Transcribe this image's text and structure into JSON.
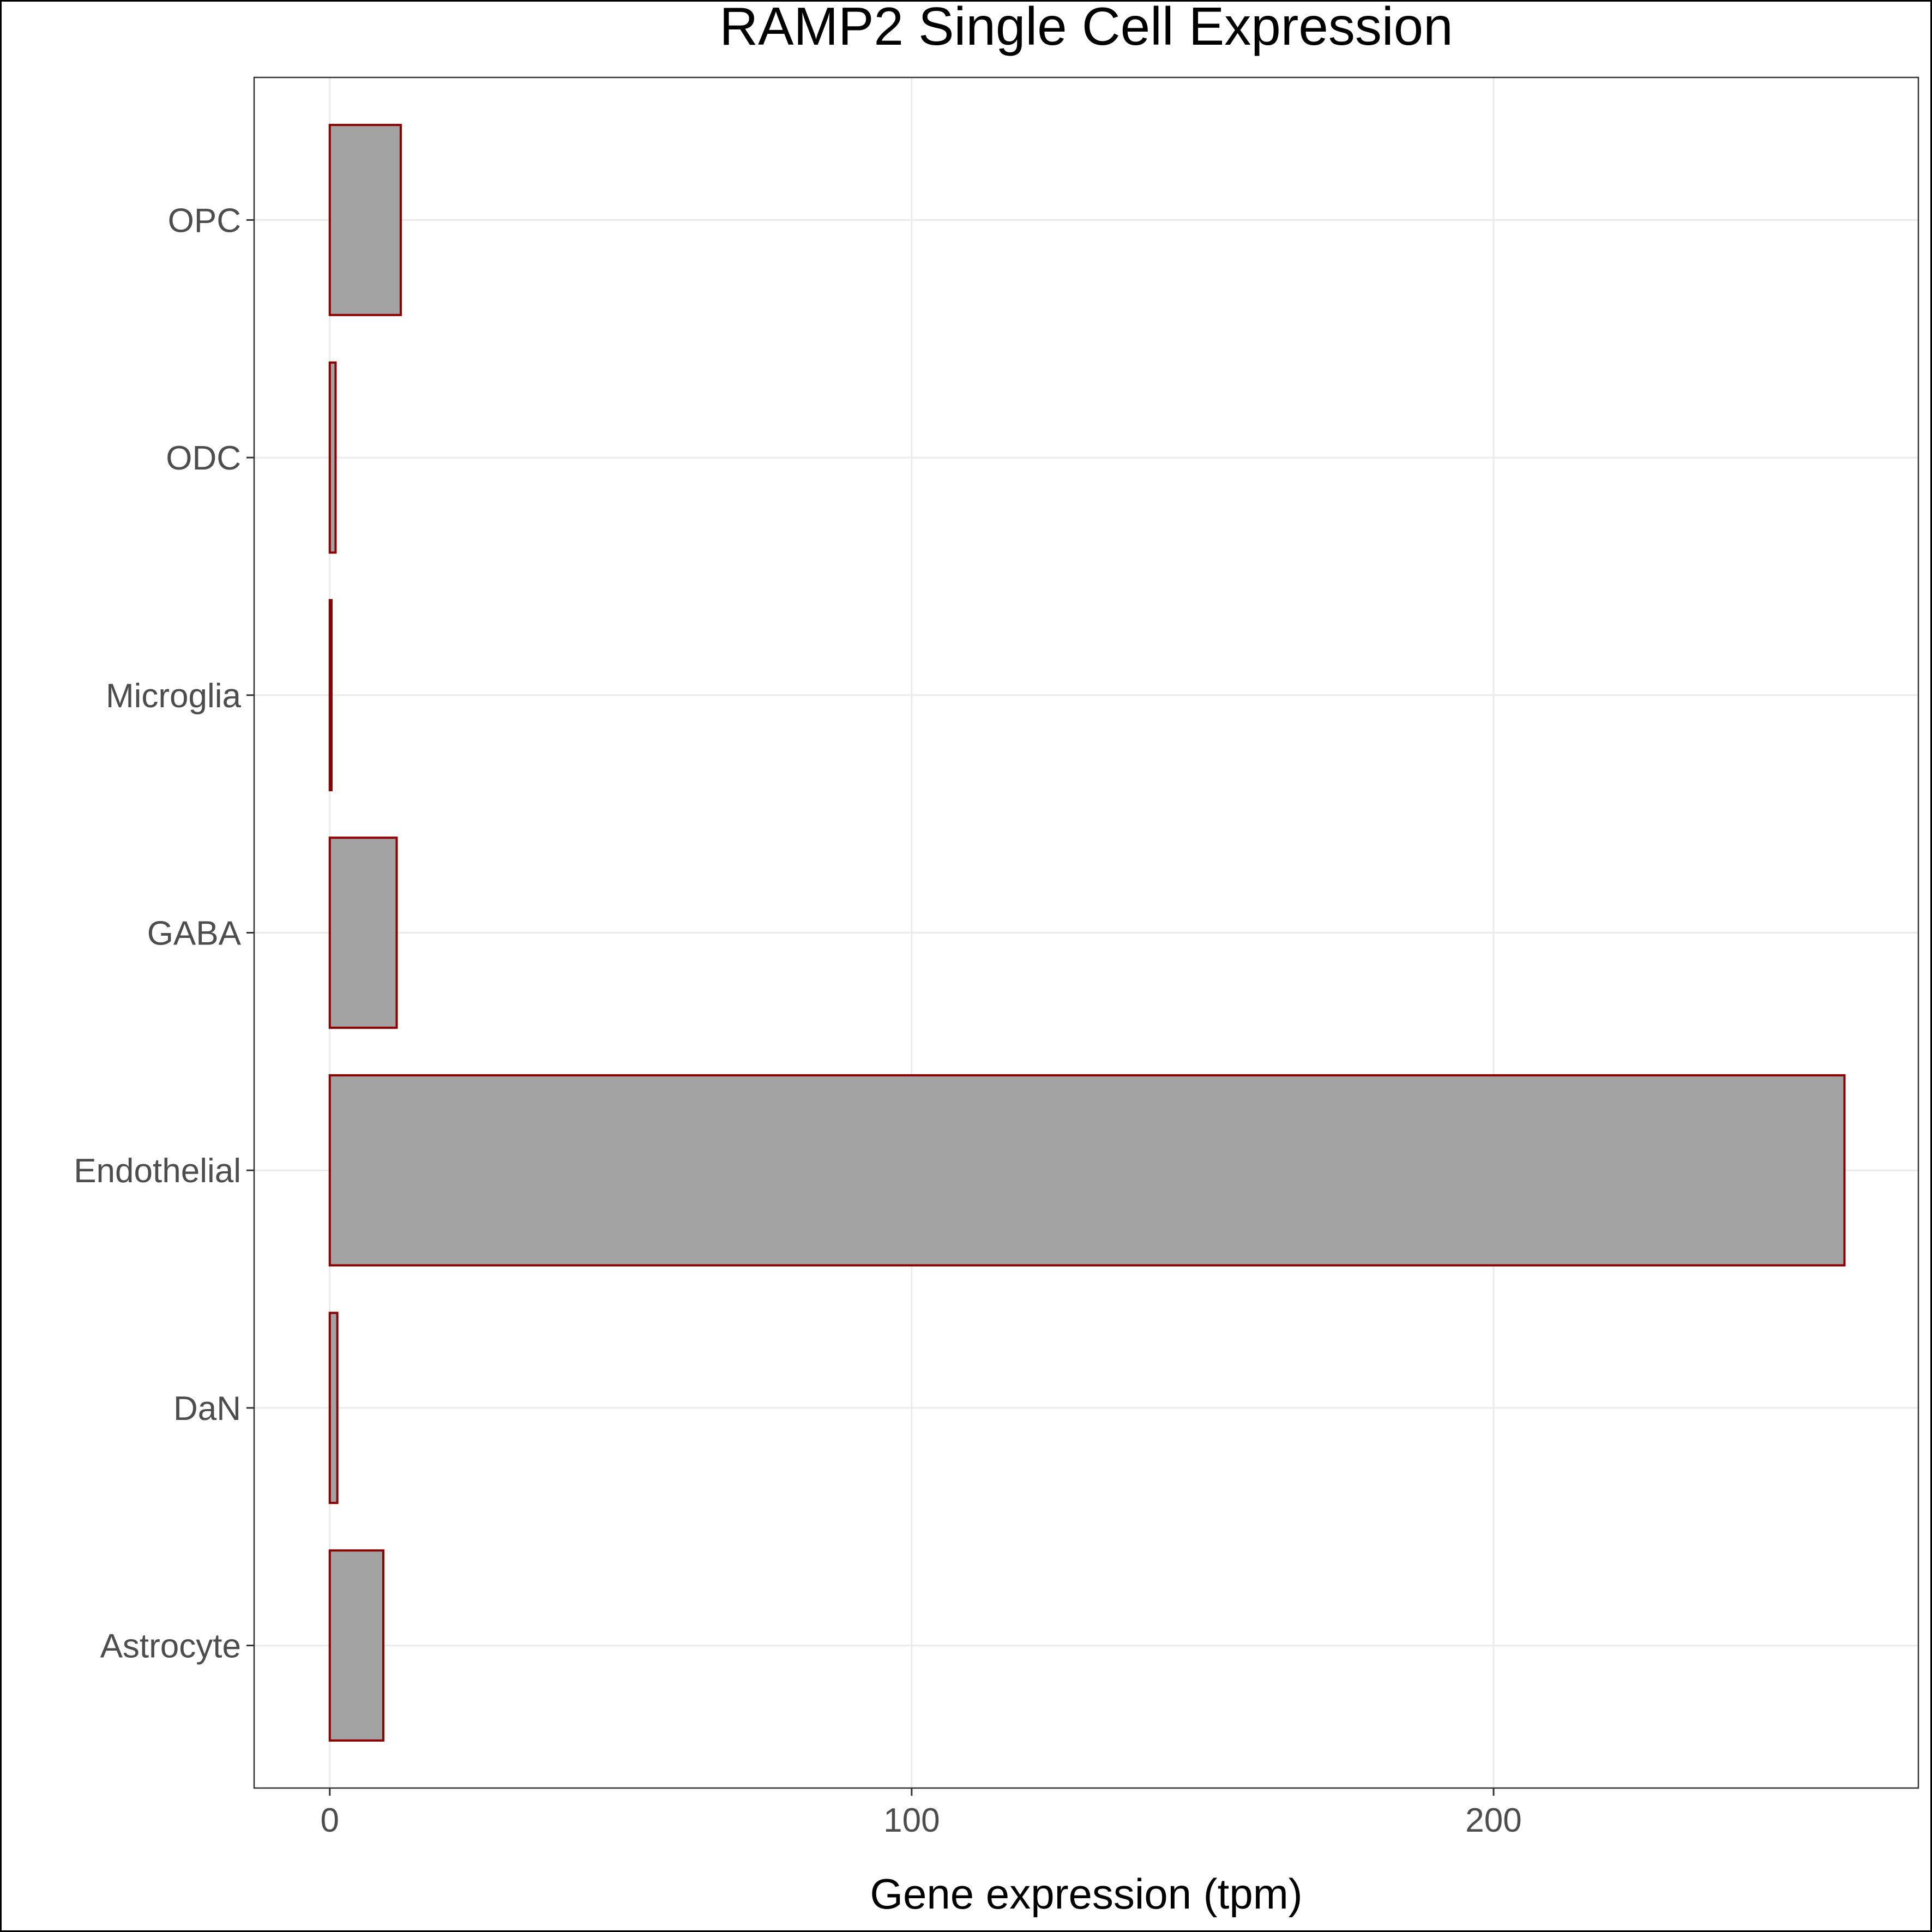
{
  "chart_data": {
    "type": "bar",
    "orientation": "horizontal",
    "title": "RAMP2 Single Cell Expression",
    "xlabel": "Gene expression (tpm)",
    "ylabel": "",
    "categories": [
      "Astrocyte",
      "DaN",
      "Endothelial",
      "GABA",
      "Microglia",
      "ODC",
      "OPC"
    ],
    "values": [
      9.2,
      1.3,
      260.3,
      11.5,
      0.3,
      1.0,
      12.2
    ],
    "xlim": [
      -13,
      273
    ],
    "x_ticks": [
      0,
      100,
      200
    ],
    "x_tick_labels": [
      "0",
      "100",
      "200"
    ],
    "grid": true,
    "legend": "none",
    "colors": {
      "bar_fill": "#a3a3a3",
      "bar_outline": "#8b0000",
      "grid": "#ebebeb",
      "panel_border": "#333333",
      "tick_label": "#4d4d4d",
      "title": "#000000"
    }
  }
}
